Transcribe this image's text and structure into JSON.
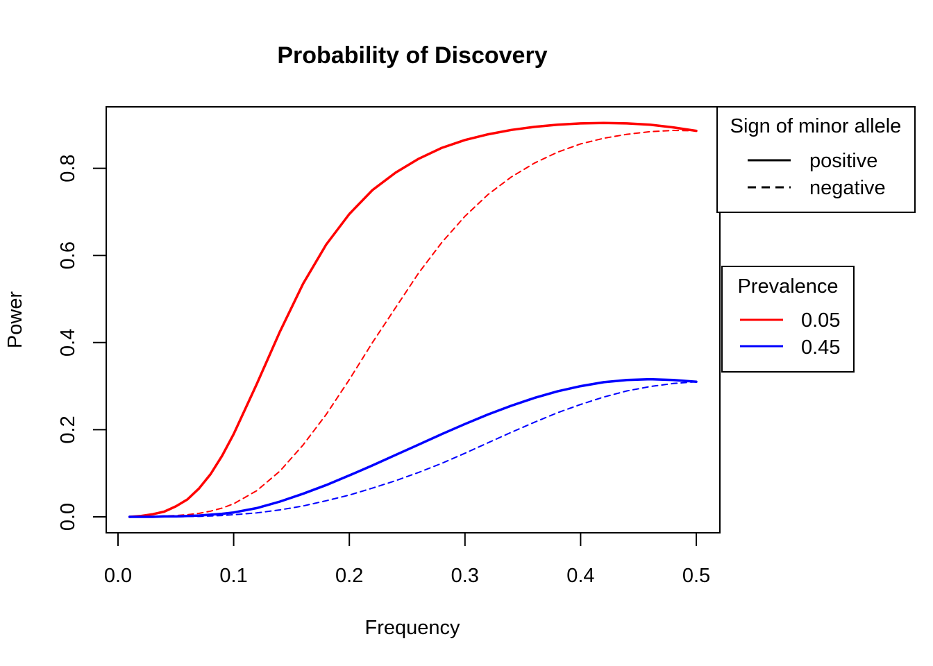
{
  "chart_data": {
    "type": "line",
    "title": "Probability of Discovery",
    "xlabel": "Frequency",
    "ylabel": "Power",
    "xlim": [
      0.0,
      0.5
    ],
    "ylim": [
      0.0,
      0.9
    ],
    "x_ticks": [
      "0.0",
      "0.1",
      "0.2",
      "0.3",
      "0.4",
      "0.5"
    ],
    "y_ticks": [
      "0.0",
      "0.2",
      "0.4",
      "0.6",
      "0.8"
    ],
    "grid": false,
    "x": [
      0.01,
      0.02,
      0.03,
      0.04,
      0.05,
      0.06,
      0.07,
      0.08,
      0.09,
      0.1,
      0.12,
      0.14,
      0.16,
      0.18,
      0.2,
      0.22,
      0.24,
      0.26,
      0.28,
      0.3,
      0.32,
      0.34,
      0.36,
      0.38,
      0.4,
      0.42,
      0.44,
      0.46,
      0.48,
      0.5
    ],
    "series": [
      {
        "prevalence": "0.05",
        "sign": "positive",
        "color": "#ff0000",
        "dash": "solid",
        "values": [
          0.0,
          0.002,
          0.006,
          0.012,
          0.024,
          0.04,
          0.065,
          0.098,
          0.14,
          0.19,
          0.305,
          0.425,
          0.535,
          0.625,
          0.695,
          0.75,
          0.79,
          0.822,
          0.847,
          0.865,
          0.878,
          0.888,
          0.895,
          0.9,
          0.903,
          0.904,
          0.903,
          0.9,
          0.894,
          0.886
        ]
      },
      {
        "prevalence": "0.05",
        "sign": "negative",
        "color": "#ff0000",
        "dash": "dashed",
        "values": [
          0.0,
          0.0,
          0.001,
          0.002,
          0.003,
          0.005,
          0.008,
          0.013,
          0.02,
          0.03,
          0.06,
          0.105,
          0.165,
          0.235,
          0.315,
          0.4,
          0.48,
          0.56,
          0.63,
          0.69,
          0.74,
          0.78,
          0.812,
          0.837,
          0.856,
          0.869,
          0.878,
          0.884,
          0.887,
          0.886
        ]
      },
      {
        "prevalence": "0.45",
        "sign": "positive",
        "color": "#0000ff",
        "dash": "solid",
        "values": [
          0.0,
          0.0,
          0.0,
          0.001,
          0.001,
          0.002,
          0.003,
          0.005,
          0.007,
          0.01,
          0.02,
          0.035,
          0.053,
          0.073,
          0.095,
          0.118,
          0.142,
          0.166,
          0.19,
          0.213,
          0.235,
          0.255,
          0.273,
          0.288,
          0.3,
          0.309,
          0.314,
          0.316,
          0.314,
          0.31
        ]
      },
      {
        "prevalence": "0.45",
        "sign": "negative",
        "color": "#0000ff",
        "dash": "dashed",
        "values": [
          0.0,
          0.0,
          0.0,
          0.0,
          0.0,
          0.001,
          0.001,
          0.002,
          0.003,
          0.005,
          0.009,
          0.016,
          0.025,
          0.037,
          0.05,
          0.066,
          0.083,
          0.102,
          0.123,
          0.146,
          0.17,
          0.194,
          0.217,
          0.239,
          0.258,
          0.275,
          0.289,
          0.299,
          0.306,
          0.31
        ]
      }
    ],
    "legends": [
      {
        "title": "Sign of minor allele",
        "placement": "top-right, outside plot",
        "entries": [
          {
            "label": "positive",
            "color": "#000000",
            "dash": "solid"
          },
          {
            "label": "negative",
            "color": "#000000",
            "dash": "dashed"
          }
        ]
      },
      {
        "title": "Prevalence",
        "placement": "right, outside plot",
        "entries": [
          {
            "label": "0.05",
            "color": "#ff0000",
            "dash": "solid"
          },
          {
            "label": "0.45",
            "color": "#0000ff",
            "dash": "solid"
          }
        ]
      }
    ]
  }
}
